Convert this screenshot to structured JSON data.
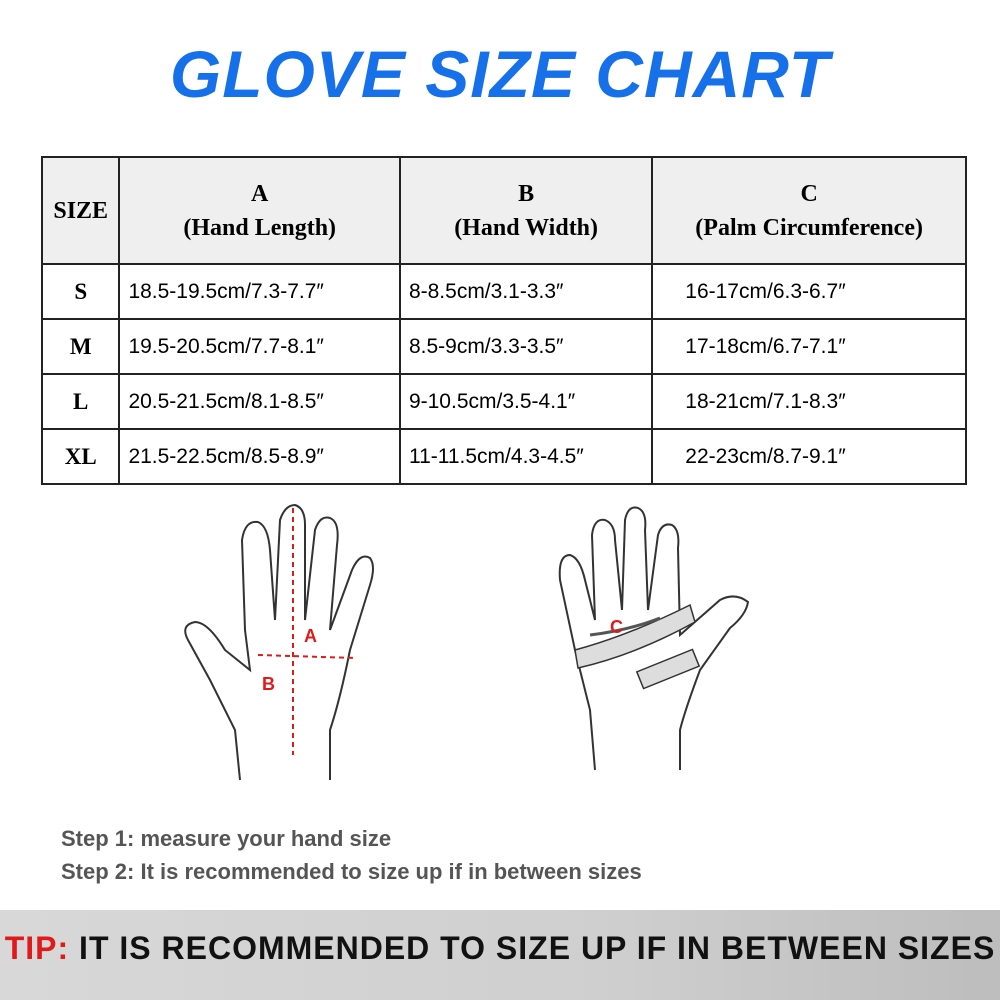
{
  "title": "GLOVE SIZE CHART",
  "table": {
    "headers": [
      {
        "line1": "SIZE",
        "line2": ""
      },
      {
        "line1": "A",
        "line2": "(Hand Length)"
      },
      {
        "line1": "B",
        "line2": "(Hand Width)"
      },
      {
        "line1": "C",
        "line2": "(Palm Circumference)"
      }
    ],
    "rows": [
      {
        "size": "S",
        "a": "18.5-19.5cm/7.3-7.7″",
        "b": "8-8.5cm/3.1-3.3″",
        "c": "16-17cm/6.3-6.7″"
      },
      {
        "size": "M",
        "a": "19.5-20.5cm/7.7-8.1″",
        "b": "8.5-9cm/3.3-3.5″",
        "c": "17-18cm/6.7-7.1″"
      },
      {
        "size": "L",
        "a": "20.5-21.5cm/8.1-8.5″",
        "b": "9-10.5cm/3.5-4.1″",
        "c": "18-21cm/7.1-8.3″"
      },
      {
        "size": "XL",
        "a": "21.5-22.5cm/8.5-8.9″",
        "b": "11-11.5cm/4.3-4.5″",
        "c": "22-23cm/8.7-9.1″"
      }
    ]
  },
  "diagram": {
    "label_a": "A",
    "label_b": "B",
    "label_c": "C"
  },
  "steps": [
    "Step 1: measure your hand size",
    "Step 2: It is recommended to size up if in between sizes"
  ],
  "tip": {
    "label": "TIP:",
    "text": " IT IS RECOMMENDED TO SIZE UP IF IN BETWEEN SIZES"
  },
  "colors": {
    "title": "#1670ea",
    "tip_label": "#e01a1a",
    "measure": "#e01a1a"
  }
}
